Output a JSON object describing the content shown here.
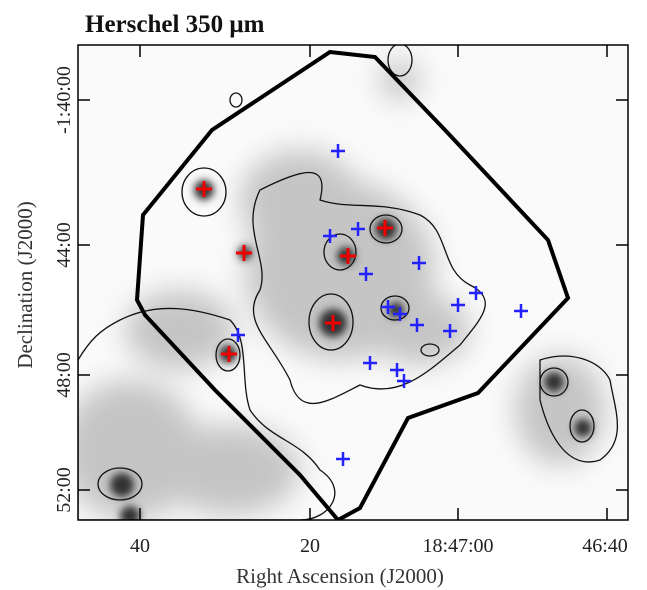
{
  "title": "Herschel 350 μm",
  "x_axis": {
    "label": "Right Ascension (J2000)",
    "ticks": [
      "40",
      "20",
      "18:47:00",
      "46:40"
    ]
  },
  "y_axis": {
    "label": "Declination (J2000)",
    "ticks": [
      "-1:40:00",
      "44:00",
      "48:00",
      "52:00"
    ]
  }
}
